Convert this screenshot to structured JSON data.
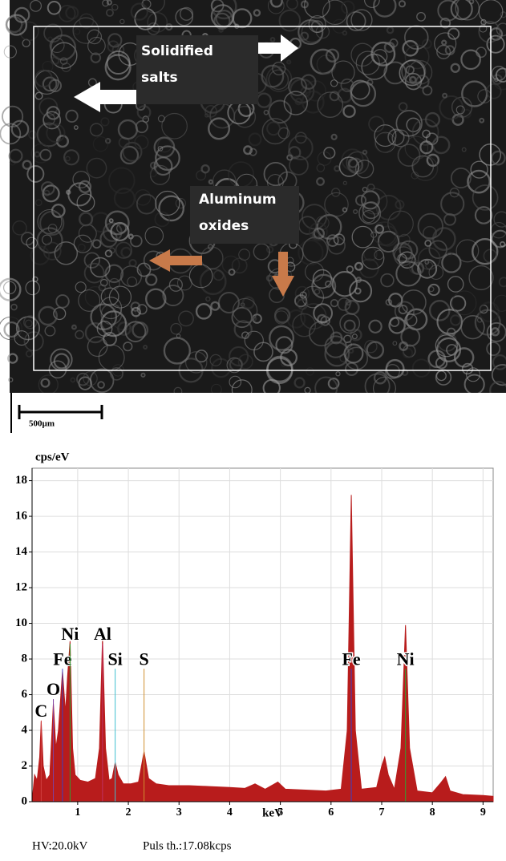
{
  "micrograph": {
    "labels": [
      {
        "lines": [
          "Solidified",
          "salts"
        ]
      },
      {
        "lines": [
          "Aluminum",
          "oxides"
        ]
      }
    ],
    "scale_bar": "500µm"
  },
  "chart_data": {
    "type": "area",
    "y_label": "cps/eV",
    "x_label": "keV",
    "color": "#b81c1c",
    "x": [
      0.1,
      0.15,
      0.2,
      0.25,
      0.28,
      0.32,
      0.38,
      0.45,
      0.52,
      0.57,
      0.62,
      0.7,
      0.76,
      0.8,
      0.85,
      0.9,
      0.95,
      1.05,
      1.2,
      1.35,
      1.43,
      1.49,
      1.55,
      1.62,
      1.68,
      1.74,
      1.8,
      1.9,
      2.05,
      2.2,
      2.31,
      2.4,
      2.55,
      2.8,
      3.2,
      3.6,
      4.0,
      4.3,
      4.5,
      4.7,
      4.95,
      5.1,
      5.5,
      5.9,
      6.2,
      6.32,
      6.4,
      6.48,
      6.6,
      6.9,
      7.0,
      7.06,
      7.13,
      7.25,
      7.38,
      7.47,
      7.55,
      7.7,
      8.0,
      8.15,
      8.26,
      8.35,
      8.6,
      9.0,
      9.2
    ],
    "values": [
      0,
      1.5,
      1.2,
      2.5,
      4.5,
      2.0,
      1.2,
      1.5,
      5.5,
      3.0,
      4.0,
      7.3,
      5.0,
      7.0,
      9.0,
      3.0,
      1.5,
      1.2,
      1.1,
      1.3,
      3.0,
      9.2,
      3.0,
      1.2,
      1.3,
      2.2,
      1.5,
      1.0,
      1.0,
      1.1,
      2.8,
      1.3,
      1.0,
      0.9,
      0.9,
      0.85,
      0.8,
      0.75,
      1.0,
      0.7,
      1.1,
      0.7,
      0.65,
      0.6,
      0.7,
      4.0,
      17.2,
      4.0,
      0.7,
      0.8,
      2.0,
      2.5,
      1.5,
      0.7,
      3.0,
      9.9,
      3.0,
      0.6,
      0.5,
      1.0,
      1.4,
      0.6,
      0.4,
      0.35,
      0.3
    ],
    "peaks": [
      {
        "label": "C",
        "x": 0.28,
        "y": 5.0,
        "color": "#d04040"
      },
      {
        "label": "O",
        "x": 0.52,
        "y": 6.2,
        "color": "#8040a0"
      },
      {
        "label": "Fe",
        "x": 0.7,
        "y": 7.9,
        "color": "#4040c0"
      },
      {
        "label": "Ni",
        "x": 0.85,
        "y": 9.3,
        "color": "#30a030"
      },
      {
        "label": "Al",
        "x": 1.49,
        "y": 9.3,
        "color": "#c03060"
      },
      {
        "label": "Si",
        "x": 1.74,
        "y": 7.9,
        "color": "#40c0d0"
      },
      {
        "label": "S",
        "x": 2.31,
        "y": 7.9,
        "color": "#d09030"
      },
      {
        "label": "Fe",
        "x": 6.4,
        "y": 7.9,
        "color": "#4040c0"
      },
      {
        "label": "Ni",
        "x": 7.47,
        "y": 7.9,
        "color": "#30a030"
      }
    ],
    "xlim": [
      0.1,
      9.2
    ],
    "ylim": [
      0,
      18.7
    ],
    "xticks": [
      1,
      2,
      3,
      4,
      5,
      6,
      7,
      8,
      9
    ],
    "yticks": [
      0,
      2,
      4,
      6,
      8,
      10,
      12,
      14,
      16,
      18
    ],
    "grid": true
  },
  "footer": {
    "hv": "HV:20.0kV",
    "pulse": "Puls th.:17.08kcps"
  }
}
